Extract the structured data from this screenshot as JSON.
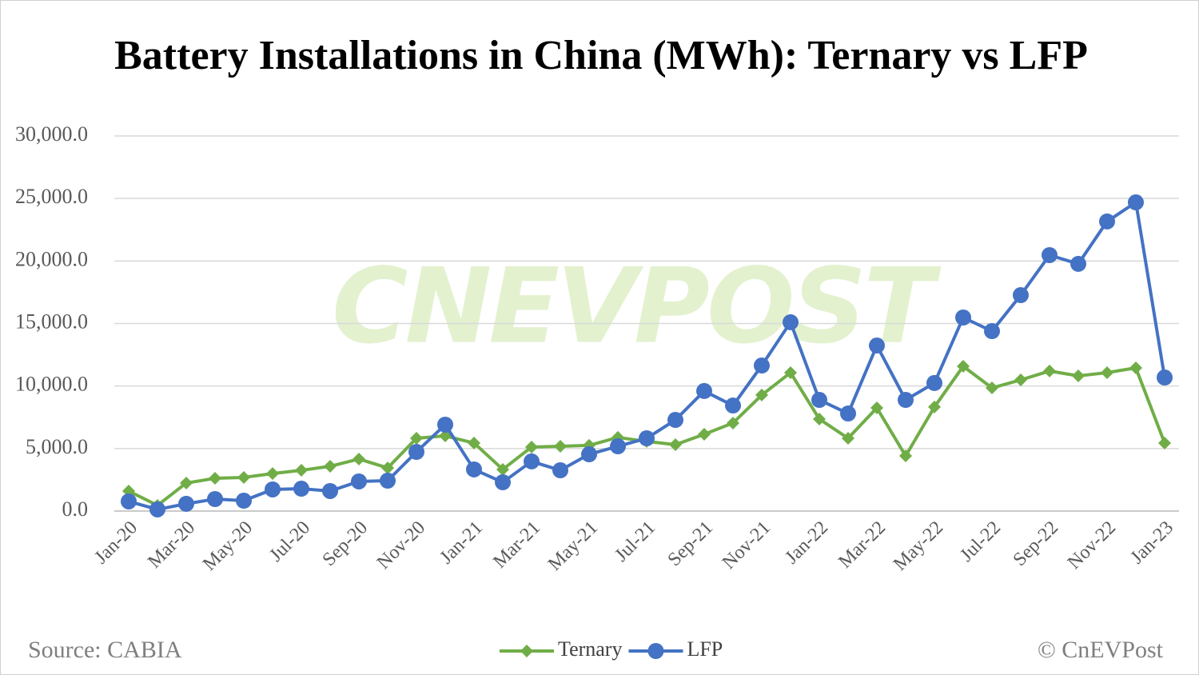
{
  "chart_data": {
    "type": "line",
    "title": "Battery Installations in China (MWh): Ternary vs LFP",
    "watermark": "CNEVPOST",
    "source": "Source: CABIA",
    "credit": "© CnEVPost",
    "categories": [
      "Jan-20",
      null,
      "Mar-20",
      null,
      "May-20",
      null,
      "Jul-20",
      null,
      "Sep-20",
      null,
      "Nov-20",
      null,
      "Jan-21",
      null,
      "Mar-21",
      null,
      "May-21",
      null,
      "Jul-21",
      null,
      "Sep-21",
      null,
      "Nov-21",
      null,
      "Jan-22",
      null,
      "Mar-22",
      null,
      "May-22",
      null,
      "Jul-22",
      null,
      "Sep-22",
      null,
      "Nov-22",
      null,
      "Jan-23"
    ],
    "series": [
      {
        "name": "Ternary",
        "color": "#70ad47",
        "marker": "diamond",
        "values": [
          1600,
          450,
          2240,
          2620,
          2690,
          3000,
          3260,
          3580,
          4160,
          3450,
          5820,
          6010,
          5440,
          3330,
          5120,
          5180,
          5250,
          5890,
          5570,
          5310,
          6140,
          7040,
          9280,
          11070,
          7360,
          5820,
          8250,
          4410,
          8320,
          11580,
          9850,
          10490,
          11200,
          10810,
          11070,
          11450,
          5440
        ]
      },
      {
        "name": "LFP",
        "color": "#4472c4",
        "marker": "circle",
        "values": [
          770,
          130,
          580,
          960,
          830,
          1730,
          1790,
          1600,
          2370,
          2430,
          4730,
          6910,
          3330,
          2300,
          3970,
          3260,
          4540,
          5180,
          5820,
          7290,
          9600,
          8440,
          11640,
          15100,
          8890,
          7800,
          13240,
          8890,
          10240,
          15480,
          14390,
          17270,
          20470,
          19770,
          23160,
          24690,
          10680
        ]
      }
    ],
    "ylim": [
      0,
      30000
    ],
    "yticks": [
      {
        "value": 0,
        "label": "0.0"
      },
      {
        "value": 5000,
        "label": "5,000.0"
      },
      {
        "value": 10000,
        "label": "10,000.0"
      },
      {
        "value": 15000,
        "label": "15,000.0"
      },
      {
        "value": 20000,
        "label": "20,000.0"
      },
      {
        "value": 25000,
        "label": "25,000.0"
      },
      {
        "value": 30000,
        "label": "30,000.0"
      }
    ],
    "grid": true,
    "legend": "bottom"
  }
}
